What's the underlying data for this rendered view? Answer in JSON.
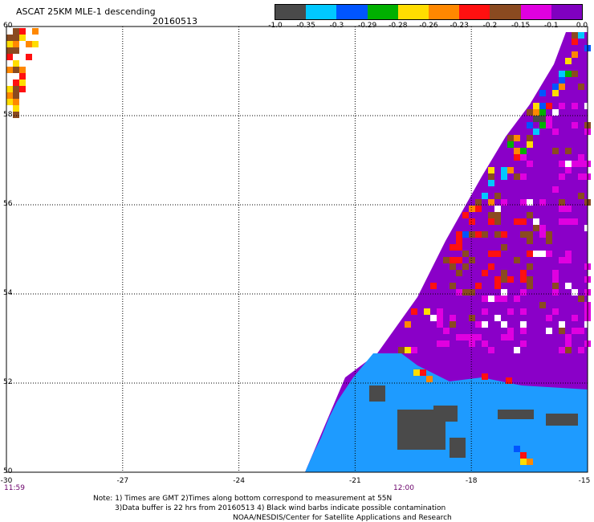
{
  "header": {
    "title": "ASCAT 25KM MLE-1 descending",
    "date": "20160513"
  },
  "colorbar": {
    "colors": [
      "#4a4a4a",
      "#00c8ff",
      "#0055ff",
      "#00b000",
      "#ffdd00",
      "#ff8800",
      "#ff1010",
      "#8a4a20",
      "#e000e0",
      "#8000c0"
    ],
    "labels": [
      "-1.0",
      "-0.35",
      "-0.3",
      "-0.29",
      "-0.28",
      "-0.26",
      "-0.23",
      "-0.2",
      "-0.15",
      "-0.1",
      "0.0"
    ]
  },
  "map": {
    "lat_labels": [
      "60",
      "58",
      "56",
      "54",
      "52",
      "50"
    ],
    "lon_labels": [
      "-30",
      "-27",
      "-24",
      "-21",
      "-18",
      "-15"
    ],
    "time_labels": [
      "11:59",
      "12:00"
    ],
    "colors": {
      "land": "#1e9bff",
      "swath": "#8a00c8",
      "grid": "#000000"
    }
  },
  "notes": {
    "line1": "Note: 1) Times are GMT 2)Times along bottom correspond to measurement at 55N",
    "line2": "3)Data buffer is 22 hrs from 20160513 4) Black wind barbs indicate possible contamination",
    "line3": "NOAA/NESDIS/Center for Satellite Applications and Research"
  }
}
